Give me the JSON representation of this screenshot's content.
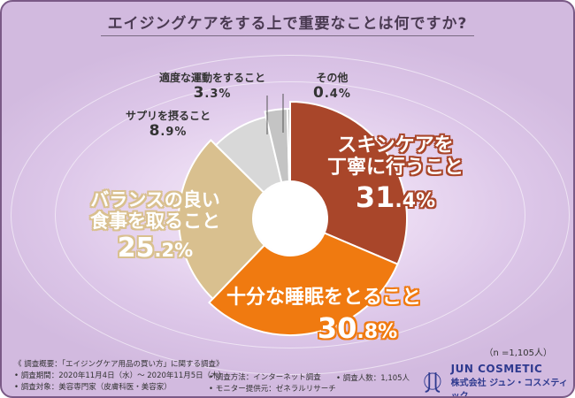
{
  "title": "エイジングケアをする上で重要なことは何ですか?",
  "chart_data": {
    "type": "pie",
    "categories": [
      "スキンケアを丁寧に行うこと",
      "十分な睡眠をとること",
      "バランスの良い食事を取ること",
      "サプリを摂ること",
      "適度な運動をすること",
      "その他"
    ],
    "values": [
      31.4,
      30.8,
      25.2,
      8.9,
      3.3,
      0.4
    ],
    "colors": [
      "#a9462a",
      "#f07a10",
      "#d9c08f",
      "#d8d8d8",
      "#c4c4c4",
      "#bfbfbf"
    ],
    "labels": [
      {
        "line1": "スキンケアを",
        "line2": "丁寧に行うこと",
        "int": "31",
        "dec": ".4%"
      },
      {
        "line1": "十分な睡眠をとること",
        "line2": "",
        "int": "30",
        "dec": ".8%"
      },
      {
        "line1": "バランスの良い",
        "line2": "食事を取ること",
        "int": "25",
        "dec": ".2%"
      },
      {
        "line1": "サプリを摂ること",
        "line2": "",
        "int": "8",
        "dec": ".9%"
      },
      {
        "line1": "適度な運動をすること",
        "line2": "",
        "int": "3",
        "dec": ".3%"
      },
      {
        "line1": "その他",
        "line2": "",
        "int": "0",
        "dec": ".4%"
      }
    ]
  },
  "sample": "（n =1,105人）",
  "notes": {
    "header": "《 調査概要：「エイジングケア用品の買い方」に関する調査》",
    "period": "• 調査期間：2020年11月4日（水）～ 2020年11月5日（木）",
    "target": "• 調査対象：美容専門家（皮膚科医・美容家）",
    "method": "• 調査方法：インターネット調査",
    "provider": "• モニター提供元：ゼネラルリサーチ",
    "count": "• 調査人数：1,105人"
  },
  "brand": {
    "name": "JUN COSMETIC",
    "company": "株式会社 ジュン・コスメティック"
  }
}
